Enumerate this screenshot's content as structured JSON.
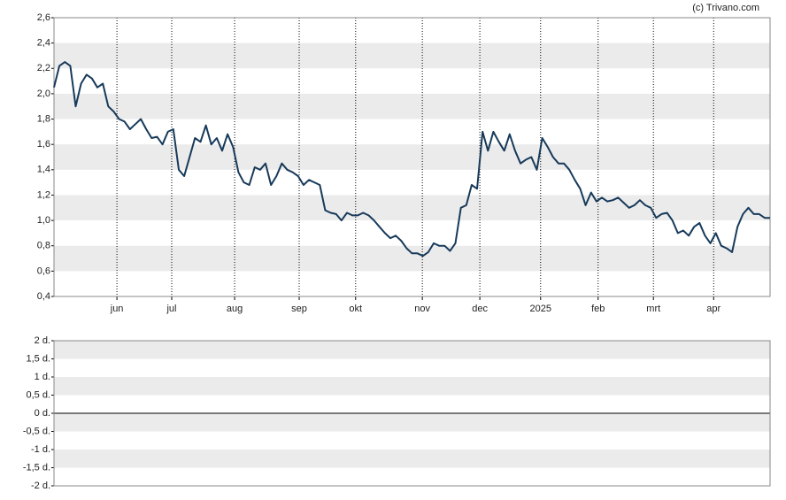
{
  "chart_data": [
    {
      "type": "line",
      "annotation": "(c) Trivano.com",
      "x": [
        0,
        1,
        2,
        3,
        4,
        5,
        6,
        7,
        8,
        9,
        10,
        11,
        12,
        13,
        14,
        15,
        16,
        17,
        18,
        19,
        20,
        21,
        22,
        23,
        24,
        25,
        26,
        27,
        28,
        29,
        30,
        31,
        32,
        33,
        34,
        35,
        36,
        37,
        38,
        39,
        40,
        41,
        42,
        43,
        44,
        45,
        46,
        47,
        48,
        49,
        50,
        51,
        52,
        53,
        54,
        55,
        56,
        57,
        58,
        59,
        60,
        61,
        62,
        63,
        64,
        65,
        66,
        67,
        68,
        69,
        70,
        71,
        72,
        73,
        74,
        75,
        76,
        77,
        78,
        79,
        80,
        81,
        82,
        83,
        84,
        85,
        86,
        87,
        88,
        89,
        90,
        91,
        92,
        93,
        94,
        95,
        96,
        97,
        98,
        99,
        100,
        101,
        102,
        103,
        104,
        105,
        106,
        107,
        108,
        109,
        110,
        111,
        112,
        113,
        114,
        115,
        116,
        117,
        118,
        119,
        120,
        121,
        122,
        123,
        124,
        125,
        126,
        127,
        128,
        129,
        130,
        131,
        132
      ],
      "series": [
        {
          "color": "#173a5a",
          "values": [
            2.05,
            2.22,
            2.25,
            2.22,
            1.9,
            2.08,
            2.15,
            2.12,
            2.05,
            2.08,
            1.9,
            1.86,
            1.8,
            1.78,
            1.72,
            1.76,
            1.8,
            1.72,
            1.65,
            1.66,
            1.6,
            1.7,
            1.72,
            1.4,
            1.35,
            1.5,
            1.65,
            1.62,
            1.75,
            1.6,
            1.65,
            1.55,
            1.68,
            1.58,
            1.38,
            1.3,
            1.28,
            1.42,
            1.4,
            1.45,
            1.28,
            1.35,
            1.45,
            1.4,
            1.38,
            1.35,
            1.28,
            1.32,
            1.3,
            1.28,
            1.08,
            1.06,
            1.05,
            1.0,
            1.06,
            1.04,
            1.04,
            1.06,
            1.04,
            1.0,
            0.95,
            0.9,
            0.86,
            0.88,
            0.84,
            0.78,
            0.74,
            0.74,
            0.72,
            0.75,
            0.82,
            0.8,
            0.8,
            0.76,
            0.82,
            1.1,
            1.12,
            1.28,
            1.25,
            1.7,
            1.55,
            1.7,
            1.62,
            1.55,
            1.68,
            1.55,
            1.45,
            1.48,
            1.5,
            1.4,
            1.65,
            1.58,
            1.5,
            1.45,
            1.45,
            1.4,
            1.32,
            1.25,
            1.12,
            1.22,
            1.15,
            1.18,
            1.15,
            1.16,
            1.18,
            1.14,
            1.1,
            1.12,
            1.16,
            1.12,
            1.1,
            1.02,
            1.05,
            1.06,
            1.0,
            0.9,
            0.92,
            0.88,
            0.95,
            0.98,
            0.88,
            0.82,
            0.9,
            0.8,
            0.78,
            0.75,
            0.95,
            1.05,
            1.1,
            1.05,
            1.05,
            1.02,
            1.02
          ]
        }
      ],
      "xlim": [
        0,
        132
      ],
      "xticks": [
        {
          "value": 11.6,
          "label": "jun"
        },
        {
          "value": 21.7,
          "label": "jul"
        },
        {
          "value": 33.3,
          "label": "aug"
        },
        {
          "value": 45.2,
          "label": "sep"
        },
        {
          "value": 55.6,
          "label": "okt"
        },
        {
          "value": 67.9,
          "label": "nov"
        },
        {
          "value": 78.5,
          "label": "dec"
        },
        {
          "value": 89.7,
          "label": "2025"
        },
        {
          "value": 100.3,
          "label": "feb"
        },
        {
          "value": 110.5,
          "label": "mrt"
        },
        {
          "value": 121.6,
          "label": "apr"
        }
      ],
      "ylim": [
        0.4,
        2.6
      ],
      "yticks": [
        {
          "value": 0.4,
          "label": "0,4"
        },
        {
          "value": 0.6,
          "label": "0,6"
        },
        {
          "value": 0.8,
          "label": "0,8"
        },
        {
          "value": 1.0,
          "label": "1,0"
        },
        {
          "value": 1.2,
          "label": "1,2"
        },
        {
          "value": 1.4,
          "label": "1,4"
        },
        {
          "value": 1.6,
          "label": "1,6"
        },
        {
          "value": 1.8,
          "label": "1,8"
        },
        {
          "value": 2.0,
          "label": "2,0"
        },
        {
          "value": 2.2,
          "label": "2,2"
        },
        {
          "value": 2.4,
          "label": "2,4"
        },
        {
          "value": 2.6,
          "label": "2,6"
        }
      ],
      "grid": true
    },
    {
      "type": "bar",
      "ylim": [
        -2,
        2
      ],
      "yticks": [
        {
          "value": -2,
          "label": "-2 d."
        },
        {
          "value": -1.5,
          "label": "-1,5 d."
        },
        {
          "value": -1,
          "label": "-1 d."
        },
        {
          "value": -0.5,
          "label": "-0,5 d."
        },
        {
          "value": 0,
          "label": "0 d."
        },
        {
          "value": 0.5,
          "label": "0,5 d."
        },
        {
          "value": 1,
          "label": "1 d."
        },
        {
          "value": 1.5,
          "label": "1,5 d."
        },
        {
          "value": 2,
          "label": "2 d."
        }
      ],
      "grid": true
    }
  ]
}
